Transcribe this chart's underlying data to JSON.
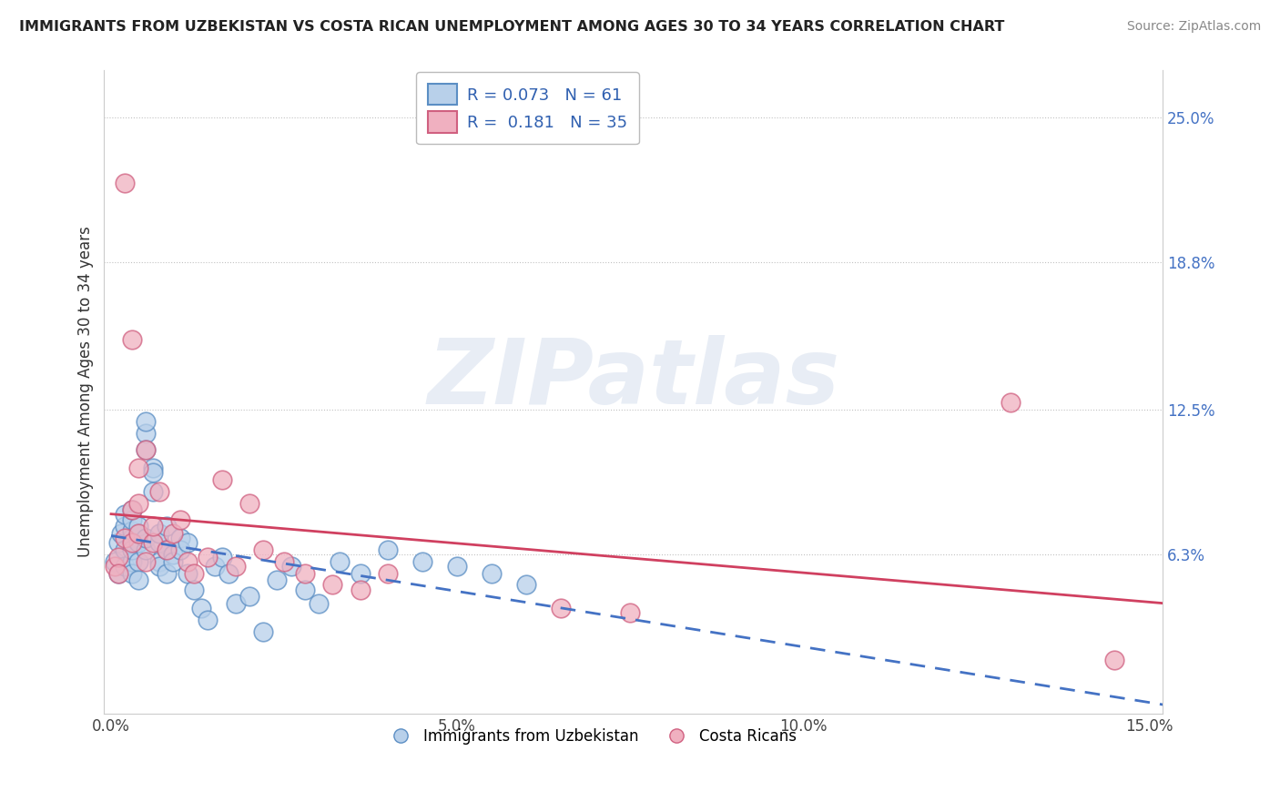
{
  "title": "IMMIGRANTS FROM UZBEKISTAN VS COSTA RICAN UNEMPLOYMENT AMONG AGES 30 TO 34 YEARS CORRELATION CHART",
  "source": "Source: ZipAtlas.com",
  "ylabel": "Unemployment Among Ages 30 to 34 years",
  "xlim": [
    -0.001,
    0.152
  ],
  "ylim": [
    -0.005,
    0.27
  ],
  "yticks": [
    0.063,
    0.125,
    0.188,
    0.25
  ],
  "ytick_labels": [
    "6.3%",
    "12.5%",
    "18.8%",
    "25.0%"
  ],
  "xticks": [
    0.0,
    0.05,
    0.1,
    0.15
  ],
  "xtick_labels": [
    "0.0%",
    "5.0%",
    "10.0%",
    "15.0%"
  ],
  "legend_labels": [
    "Immigrants from Uzbekistan",
    "Costa Ricans"
  ],
  "legend_r": [
    0.073,
    0.181
  ],
  "legend_n": [
    61,
    35
  ],
  "blue_face_color": "#b8d0ea",
  "blue_edge_color": "#5b8ec4",
  "pink_face_color": "#f0b0c0",
  "pink_edge_color": "#d06080",
  "reg_blue_color": "#4472c4",
  "reg_pink_color": "#d04060",
  "watermark": "ZIPatlas",
  "background_color": "#ffffff",
  "blue_x": [
    0.0005,
    0.001,
    0.001,
    0.0015,
    0.002,
    0.002,
    0.002,
    0.002,
    0.003,
    0.003,
    0.003,
    0.003,
    0.003,
    0.003,
    0.003,
    0.004,
    0.004,
    0.004,
    0.004,
    0.004,
    0.005,
    0.005,
    0.005,
    0.005,
    0.005,
    0.006,
    0.006,
    0.006,
    0.007,
    0.007,
    0.007,
    0.007,
    0.008,
    0.008,
    0.008,
    0.009,
    0.009,
    0.01,
    0.01,
    0.011,
    0.011,
    0.012,
    0.013,
    0.014,
    0.015,
    0.016,
    0.017,
    0.018,
    0.02,
    0.022,
    0.024,
    0.026,
    0.028,
    0.03,
    0.033,
    0.036,
    0.04,
    0.045,
    0.05,
    0.055,
    0.06
  ],
  "blue_y": [
    0.06,
    0.068,
    0.055,
    0.072,
    0.065,
    0.075,
    0.08,
    0.058,
    0.07,
    0.073,
    0.06,
    0.065,
    0.078,
    0.082,
    0.055,
    0.068,
    0.072,
    0.06,
    0.075,
    0.052,
    0.115,
    0.12,
    0.108,
    0.065,
    0.07,
    0.1,
    0.098,
    0.09,
    0.068,
    0.06,
    0.072,
    0.058,
    0.075,
    0.065,
    0.055,
    0.063,
    0.06,
    0.07,
    0.065,
    0.055,
    0.068,
    0.048,
    0.04,
    0.035,
    0.058,
    0.062,
    0.055,
    0.042,
    0.045,
    0.03,
    0.052,
    0.058,
    0.048,
    0.042,
    0.06,
    0.055,
    0.065,
    0.06,
    0.058,
    0.055,
    0.05
  ],
  "pink_x": [
    0.0005,
    0.001,
    0.001,
    0.002,
    0.002,
    0.003,
    0.003,
    0.003,
    0.004,
    0.004,
    0.004,
    0.005,
    0.005,
    0.006,
    0.006,
    0.007,
    0.008,
    0.009,
    0.01,
    0.011,
    0.012,
    0.014,
    0.016,
    0.018,
    0.02,
    0.022,
    0.025,
    0.028,
    0.032,
    0.036,
    0.04,
    0.065,
    0.075,
    0.13,
    0.145
  ],
  "pink_y": [
    0.058,
    0.062,
    0.055,
    0.222,
    0.07,
    0.082,
    0.155,
    0.068,
    0.1,
    0.072,
    0.085,
    0.06,
    0.108,
    0.068,
    0.075,
    0.09,
    0.065,
    0.072,
    0.078,
    0.06,
    0.055,
    0.062,
    0.095,
    0.058,
    0.085,
    0.065,
    0.06,
    0.055,
    0.05,
    0.048,
    0.055,
    0.04,
    0.038,
    0.128,
    0.018
  ]
}
